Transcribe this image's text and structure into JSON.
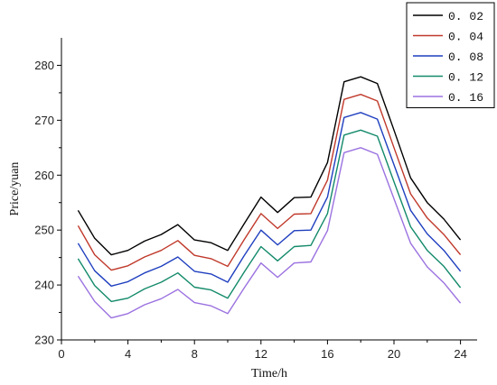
{
  "chart_data": {
    "type": "line",
    "xlabel": "Time/h",
    "ylabel": "Price/yuan",
    "xlim": [
      0,
      25
    ],
    "ylim": [
      230,
      285
    ],
    "xticks": [
      0,
      4,
      8,
      12,
      16,
      20,
      24
    ],
    "yticks": [
      230,
      240,
      250,
      260,
      270,
      280
    ],
    "grid": false,
    "legend_position": "top-right",
    "x": [
      1,
      2,
      3,
      4,
      5,
      6,
      7,
      8,
      9,
      10,
      11,
      12,
      13,
      14,
      15,
      16,
      17,
      18,
      19,
      20,
      21,
      22,
      23,
      24
    ],
    "series": [
      {
        "name": "0. 02",
        "color": "#000000",
        "values": [
          253.6,
          248.5,
          245.5,
          246.3,
          248.0,
          249.2,
          251.0,
          248.2,
          247.7,
          246.3,
          251.2,
          256.0,
          253.2,
          255.9,
          256.0,
          262.3,
          277.0,
          277.9,
          276.7,
          268.2,
          259.5,
          255.0,
          252.0,
          248.2
        ]
      },
      {
        "name": "0. 04",
        "color": "#c0392b",
        "values": [
          250.8,
          245.5,
          242.7,
          243.5,
          245.1,
          246.3,
          248.1,
          245.4,
          244.8,
          243.4,
          248.3,
          253.0,
          250.3,
          252.9,
          253.0,
          259.1,
          273.8,
          274.7,
          273.5,
          265.0,
          256.6,
          252.2,
          249.2,
          245.5
        ]
      },
      {
        "name": "0. 08",
        "color": "#1f3fbf",
        "values": [
          247.6,
          242.6,
          239.8,
          240.6,
          242.2,
          243.4,
          245.1,
          242.5,
          242.0,
          240.5,
          245.4,
          250.0,
          247.3,
          249.9,
          250.0,
          256.0,
          270.5,
          271.4,
          270.2,
          261.9,
          253.6,
          249.3,
          246.3,
          242.5
        ]
      },
      {
        "name": "0. 12",
        "color": "#138a6a",
        "values": [
          244.8,
          239.9,
          237.0,
          237.6,
          239.3,
          240.5,
          242.2,
          239.6,
          239.1,
          237.6,
          242.4,
          247.0,
          244.4,
          247.0,
          247.2,
          253.0,
          267.3,
          268.2,
          267.1,
          258.8,
          250.6,
          246.3,
          243.4,
          239.5
        ]
      },
      {
        "name": "0. 16",
        "color": "#9b72e0",
        "values": [
          241.6,
          237.0,
          234.0,
          234.8,
          236.4,
          237.5,
          239.2,
          236.8,
          236.2,
          234.8,
          239.5,
          244.0,
          241.4,
          244.0,
          244.2,
          249.9,
          264.1,
          265.0,
          263.8,
          255.7,
          247.6,
          243.3,
          240.4,
          236.7
        ]
      }
    ]
  }
}
